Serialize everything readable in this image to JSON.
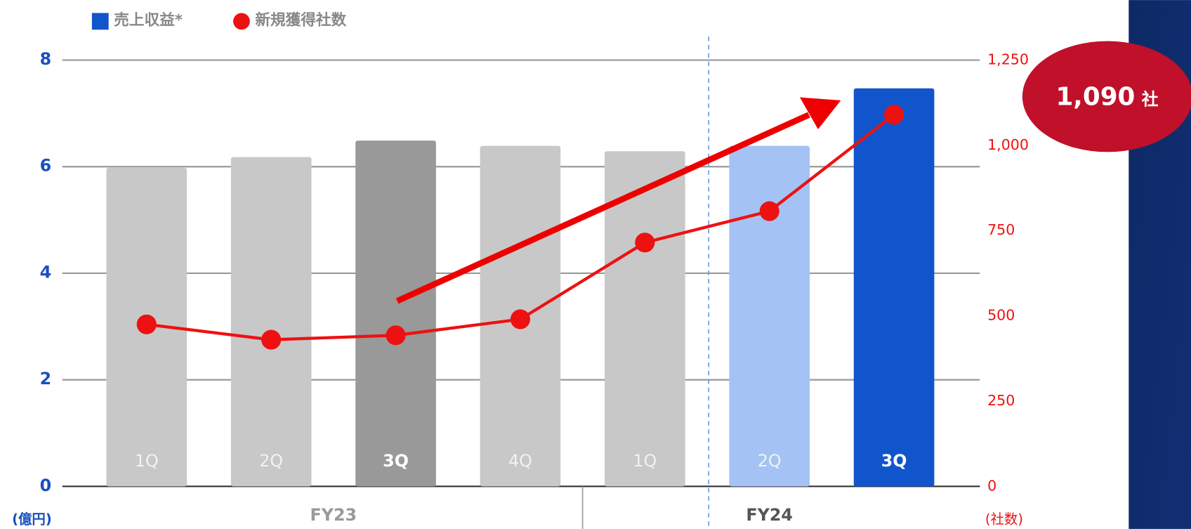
{
  "chart_data": {
    "type": "bar-line",
    "legend": [
      "売上収益*",
      "新規獲得社数"
    ],
    "groups": [
      {
        "name": "FY23",
        "categories": [
          "1Q",
          "2Q",
          "3Q",
          "4Q"
        ]
      },
      {
        "name": "FY24",
        "categories": [
          "1Q",
          "2Q",
          "3Q"
        ]
      }
    ],
    "series": [
      {
        "name": "売上収益*",
        "type": "bar",
        "color": "#1155cc",
        "colors": [
          "#c8c8c8",
          "#c8c8c8",
          "#999999",
          "#c8c8c8",
          "#c8c8c8",
          "#a4c2f4",
          "#1155cc"
        ],
        "values": [
          5.98,
          6.18,
          6.49,
          6.39,
          6.29,
          6.39,
          7.47
        ]
      },
      {
        "name": "新規獲得社数",
        "type": "line",
        "axis": "y2",
        "color": "#ee1111",
        "values": [
          475,
          430,
          443,
          490,
          715,
          807,
          1090
        ],
        "value_labels": [
          null,
          null,
          null,
          null,
          null,
          null,
          "1,090"
        ]
      }
    ],
    "value_label_unit": "社",
    "ylim": [
      0,
      8
    ],
    "yticks": [
      0,
      2,
      4,
      6,
      8
    ],
    "y2lim": [
      0,
      1250
    ],
    "y2ticks": [
      0,
      250,
      500,
      750,
      {
        "value": 1000,
        "label": "1,000"
      },
      {
        "value": 1250,
        "label": "1,250"
      }
    ],
    "ylabel": "(億円)",
    "y2label": "(社数)",
    "grid": true
  }
}
